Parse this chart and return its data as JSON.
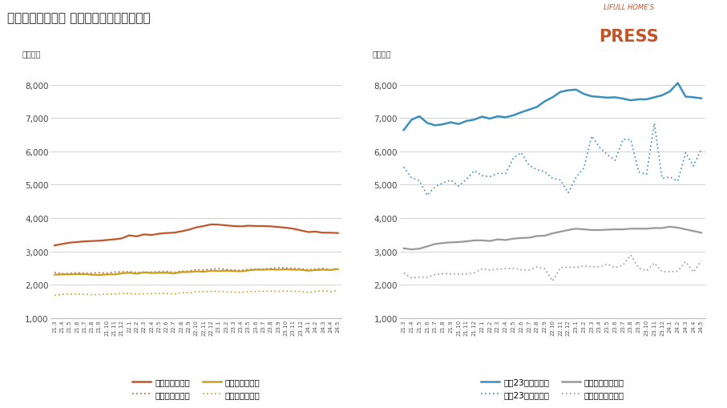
{
  "title": "『中古一戸建て』 掛載価格・反響価格推移",
  "ylabel": "（万円）",
  "ylim": [
    1000,
    8600
  ],
  "yticks": [
    1000,
    2000,
    3000,
    4000,
    5000,
    6000,
    7000,
    8000
  ],
  "x_labels": [
    "21.3",
    "21.4",
    "21.5",
    "21.6",
    "21.7",
    "21.8",
    "21.9",
    "21.10",
    "21.11",
    "21.12",
    "22.1",
    "22.2",
    "22.3",
    "22.4",
    "22.5",
    "22.6",
    "22.7",
    "22.8",
    "22.9",
    "22.10",
    "22.11",
    "22.12",
    "23.1",
    "23.2",
    "23.3",
    "23.4",
    "23.5",
    "23.6",
    "23.7",
    "23.8",
    "23.9",
    "23.10",
    "23.11",
    "23.12",
    "24.1",
    "24.2",
    "24.3",
    "24.4",
    "24.5"
  ],
  "left": {
    "shuto_listed": [
      3180,
      3220,
      3260,
      3280,
      3300,
      3310,
      3320,
      3340,
      3360,
      3390,
      3480,
      3450,
      3510,
      3490,
      3530,
      3550,
      3560,
      3600,
      3650,
      3720,
      3760,
      3810,
      3800,
      3780,
      3760,
      3750,
      3770,
      3760,
      3760,
      3750,
      3730,
      3710,
      3680,
      3630,
      3580,
      3590,
      3560,
      3560,
      3550
    ],
    "shuto_resp": [
      2370,
      2330,
      2340,
      2360,
      2340,
      2350,
      2360,
      2350,
      2380,
      2390,
      2390,
      2370,
      2380,
      2380,
      2390,
      2400,
      2370,
      2400,
      2410,
      2450,
      2440,
      2470,
      2480,
      2460,
      2440,
      2430,
      2460,
      2470,
      2470,
      2490,
      2510,
      2500,
      2490,
      2480,
      2450,
      2470,
      2490,
      2450,
      2490
    ],
    "kinki_listed": [
      2300,
      2310,
      2310,
      2320,
      2320,
      2300,
      2290,
      2310,
      2310,
      2340,
      2360,
      2330,
      2370,
      2350,
      2360,
      2360,
      2340,
      2380,
      2380,
      2400,
      2390,
      2420,
      2410,
      2420,
      2410,
      2400,
      2430,
      2450,
      2450,
      2460,
      2450,
      2460,
      2450,
      2450,
      2420,
      2440,
      2450,
      2440,
      2470
    ],
    "kinki_resp": [
      1680,
      1710,
      1720,
      1720,
      1710,
      1700,
      1700,
      1720,
      1720,
      1740,
      1740,
      1720,
      1730,
      1730,
      1740,
      1740,
      1720,
      1760,
      1760,
      1790,
      1790,
      1800,
      1800,
      1790,
      1780,
      1770,
      1790,
      1800,
      1800,
      1810,
      1800,
      1810,
      1800,
      1800,
      1770,
      1800,
      1820,
      1790,
      1820
    ]
  },
  "right": {
    "tokyo23_listed": [
      6640,
      6950,
      7050,
      6850,
      6780,
      6810,
      6870,
      6820,
      6910,
      6950,
      7040,
      6980,
      7050,
      7020,
      7080,
      7170,
      7250,
      7330,
      7500,
      7620,
      7780,
      7830,
      7850,
      7720,
      7650,
      7630,
      7610,
      7620,
      7580,
      7530,
      7560,
      7560,
      7620,
      7680,
      7800,
      8050,
      7640,
      7620,
      7590
    ],
    "tokyo23_resp": [
      5530,
      5200,
      5120,
      4680,
      4940,
      5050,
      5140,
      4960,
      5160,
      5420,
      5270,
      5240,
      5340,
      5330,
      5800,
      5960,
      5580,
      5450,
      5390,
      5190,
      5140,
      4760,
      5220,
      5500,
      6460,
      6120,
      5900,
      5730,
      6360,
      6350,
      5380,
      5310,
      6840,
      5190,
      5230,
      5110,
      5960,
      5560,
      6060
    ],
    "tokyoshi_listed": [
      3090,
      3060,
      3080,
      3150,
      3220,
      3250,
      3270,
      3280,
      3300,
      3330,
      3330,
      3310,
      3360,
      3340,
      3380,
      3400,
      3410,
      3460,
      3470,
      3540,
      3590,
      3640,
      3680,
      3660,
      3640,
      3640,
      3650,
      3660,
      3660,
      3680,
      3680,
      3680,
      3700,
      3700,
      3740,
      3710,
      3660,
      3610,
      3560
    ],
    "tokyoshi_resp": [
      2350,
      2200,
      2230,
      2220,
      2300,
      2330,
      2330,
      2320,
      2320,
      2360,
      2480,
      2440,
      2470,
      2480,
      2490,
      2450,
      2440,
      2530,
      2480,
      2110,
      2510,
      2530,
      2520,
      2560,
      2540,
      2540,
      2620,
      2510,
      2590,
      2890,
      2500,
      2420,
      2650,
      2390,
      2390,
      2410,
      2690,
      2380,
      2720
    ]
  },
  "colors": {
    "shuto": "#c0562a",
    "kinki": "#c8a020",
    "tokyo23": "#3b8fbf",
    "tokyoshi": "#999999"
  },
  "logo_text1": "LIFULL HOME'S",
  "logo_text2": "PRESS",
  "background_color": "#ffffff"
}
